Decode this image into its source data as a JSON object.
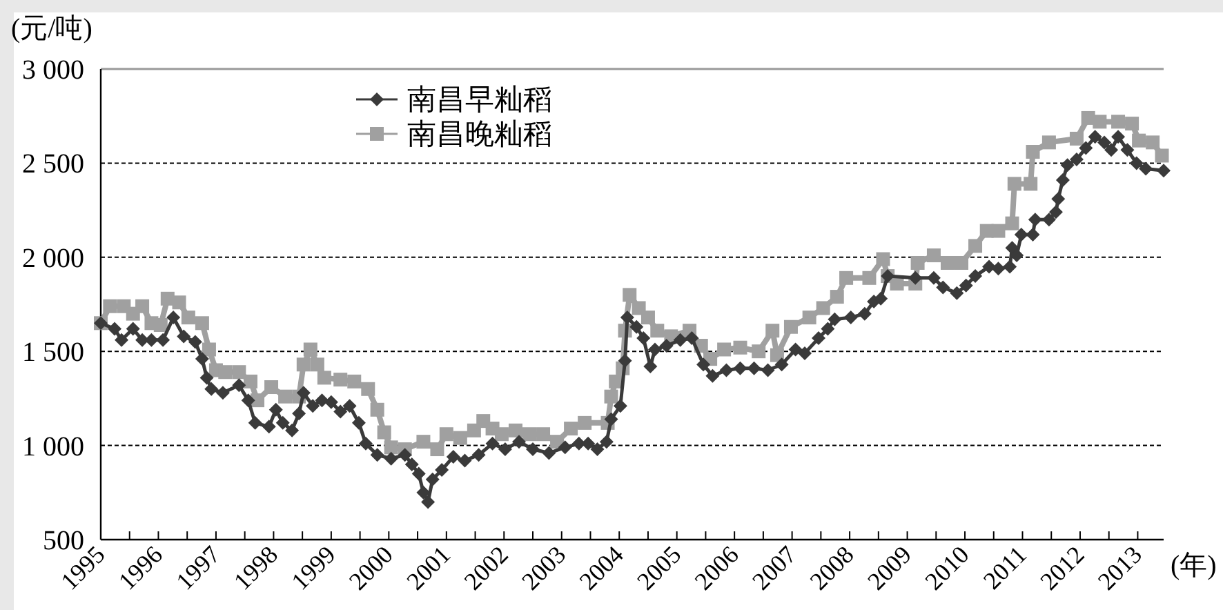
{
  "chart_data": {
    "type": "line",
    "ylabel": "(元/吨)",
    "xlabel": "(年)",
    "xlim": [
      1995,
      2013.45
    ],
    "xticks": [
      1995,
      {
        "value": 1995.5,
        "label": null
      },
      1996,
      {
        "value": 1996.5,
        "label": null
      },
      1997,
      {
        "value": 1997.5,
        "label": null
      },
      1998,
      {
        "value": 1998.5,
        "label": null
      },
      1999,
      {
        "value": 1999.5,
        "label": null
      },
      2000,
      {
        "value": 2000.5,
        "label": null
      },
      2001,
      {
        "value": 2001.5,
        "label": null
      },
      2002,
      {
        "value": 2002.5,
        "label": null
      },
      2003,
      {
        "value": 2003.5,
        "label": null
      },
      2004,
      {
        "value": 2004.5,
        "label": null
      },
      2005,
      {
        "value": 2005.5,
        "label": null
      },
      2006,
      {
        "value": 2006.5,
        "label": null
      },
      2007,
      {
        "value": 2007.5,
        "label": null
      },
      2008,
      {
        "value": 2008.5,
        "label": null
      },
      2009,
      {
        "value": 2009.5,
        "label": null
      },
      2010,
      {
        "value": 2010.5,
        "label": null
      },
      2011,
      {
        "value": 2011.5,
        "label": null
      },
      2012,
      {
        "value": 2012.5,
        "label": null
      },
      2013
    ],
    "ylim": [
      500,
      3000
    ],
    "yticks": [
      500,
      {
        "value": 1000,
        "label": "1 000"
      },
      {
        "value": 1500,
        "label": "1 500"
      },
      {
        "value": 2000,
        "label": "2 000"
      },
      {
        "value": 2500,
        "label": "2 500"
      },
      {
        "value": 3000,
        "label": "3 000"
      }
    ],
    "grid": "y",
    "legend": "top left",
    "line_style": "solid",
    "series": [
      {
        "name": "南昌早籼稻",
        "color": "#3a3a3a",
        "marker": "diamond",
        "x": [
          1995.0,
          1995.24,
          1995.36,
          1995.56,
          1995.72,
          1995.88,
          1996.08,
          1996.26,
          1996.44,
          1996.64,
          1996.76,
          1996.84,
          1996.92,
          1997.12,
          1997.4,
          1997.56,
          1997.68,
          1997.92,
          1998.04,
          1998.16,
          1998.32,
          1998.44,
          1998.52,
          1998.68,
          1998.84,
          1999.0,
          1999.16,
          1999.32,
          1999.48,
          1999.6,
          1999.8,
          2000.04,
          2000.28,
          2000.4,
          2000.52,
          2000.6,
          2000.68,
          2000.76,
          2000.92,
          2001.12,
          2001.32,
          2001.56,
          2001.8,
          2002.02,
          2002.26,
          2002.5,
          2002.78,
          2003.06,
          2003.3,
          2003.46,
          2003.62,
          2003.78,
          2003.86,
          2004.02,
          2004.1,
          2004.14,
          2004.3,
          2004.42,
          2004.54,
          2004.62,
          2004.82,
          2005.06,
          2005.26,
          2005.46,
          2005.62,
          2005.86,
          2006.1,
          2006.34,
          2006.58,
          2006.82,
          2007.06,
          2007.22,
          2007.46,
          2007.62,
          2007.74,
          2008.02,
          2008.26,
          2008.42,
          2008.54,
          2008.66,
          2009.14,
          2009.46,
          2009.62,
          2009.86,
          2010.02,
          2010.18,
          2010.42,
          2010.58,
          2010.78,
          2010.82,
          2010.9,
          2010.98,
          2011.18,
          2011.22,
          2011.46,
          2011.58,
          2011.62,
          2011.7,
          2011.78,
          2011.94,
          2012.1,
          2012.26,
          2012.42,
          2012.54,
          2012.66,
          2012.82,
          2012.98,
          2013.14,
          2013.45
        ],
        "values": [
          1650,
          1620,
          1560,
          1620,
          1560,
          1560,
          1560,
          1680,
          1580,
          1550,
          1460,
          1360,
          1300,
          1280,
          1320,
          1240,
          1120,
          1100,
          1190,
          1120,
          1080,
          1170,
          1280,
          1210,
          1240,
          1230,
          1180,
          1210,
          1120,
          1010,
          950,
          930,
          950,
          900,
          850,
          750,
          700,
          820,
          870,
          940,
          920,
          950,
          1010,
          980,
          1020,
          980,
          960,
          990,
          1010,
          1010,
          980,
          1020,
          1140,
          1210,
          1450,
          1680,
          1630,
          1570,
          1420,
          1510,
          1530,
          1560,
          1570,
          1430,
          1370,
          1400,
          1410,
          1410,
          1400,
          1430,
          1510,
          1490,
          1570,
          1620,
          1670,
          1680,
          1700,
          1765,
          1780,
          1900,
          1890,
          1890,
          1840,
          1810,
          1850,
          1900,
          1950,
          1940,
          1950,
          2050,
          2010,
          2120,
          2120,
          2200,
          2200,
          2240,
          2310,
          2410,
          2490,
          2520,
          2580,
          2640,
          2610,
          2570,
          2640,
          2570,
          2500,
          2470,
          2460
        ]
      },
      {
        "name": "南昌晚籼稻",
        "color": "#a0a0a0",
        "marker": "square",
        "x": [
          1995.0,
          1995.16,
          1995.4,
          1995.56,
          1995.72,
          1995.88,
          1996.04,
          1996.16,
          1996.36,
          1996.52,
          1996.76,
          1996.88,
          1997.0,
          1997.16,
          1997.4,
          1997.6,
          1997.72,
          1997.96,
          1998.2,
          1998.44,
          1998.52,
          1998.64,
          1998.76,
          1998.88,
          1999.16,
          1999.4,
          1999.64,
          1999.8,
          1999.92,
          2000.04,
          2000.28,
          2000.6,
          2000.84,
          2001.0,
          2001.24,
          2001.48,
          2001.64,
          2001.8,
          2001.96,
          2002.2,
          2002.44,
          2002.68,
          2002.92,
          2003.16,
          2003.4,
          2003.8,
          2003.86,
          2003.94,
          2004.06,
          2004.1,
          2004.18,
          2004.34,
          2004.5,
          2004.66,
          2004.9,
          2005.22,
          2005.42,
          2005.58,
          2005.82,
          2006.1,
          2006.42,
          2006.66,
          2006.74,
          2006.98,
          2007.3,
          2007.54,
          2007.78,
          2007.94,
          2008.34,
          2008.58,
          2008.66,
          2008.82,
          2009.14,
          2009.18,
          2009.46,
          2009.7,
          2009.94,
          2010.18,
          2010.38,
          2010.58,
          2010.82,
          2010.86,
          2011.14,
          2011.18,
          2011.46,
          2011.94,
          2012.14,
          2012.34,
          2012.66,
          2012.9,
          2013.02,
          2013.26,
          2013.42
        ],
        "values": [
          1650,
          1740,
          1740,
          1700,
          1740,
          1650,
          1640,
          1780,
          1760,
          1680,
          1650,
          1510,
          1400,
          1390,
          1390,
          1340,
          1240,
          1310,
          1260,
          1260,
          1430,
          1510,
          1430,
          1360,
          1350,
          1340,
          1300,
          1190,
          1070,
          990,
          980,
          1020,
          980,
          1060,
          1040,
          1080,
          1130,
          1090,
          1060,
          1080,
          1060,
          1060,
          1020,
          1090,
          1120,
          1120,
          1260,
          1340,
          1410,
          1610,
          1800,
          1730,
          1680,
          1610,
          1580,
          1610,
          1530,
          1460,
          1510,
          1520,
          1500,
          1610,
          1480,
          1630,
          1680,
          1730,
          1790,
          1890,
          1890,
          1990,
          1900,
          1860,
          1860,
          1970,
          2010,
          1970,
          1970,
          2060,
          2140,
          2140,
          2180,
          2390,
          2390,
          2560,
          2610,
          2630,
          2740,
          2720,
          2720,
          2710,
          2620,
          2610,
          2540
        ]
      }
    ]
  }
}
